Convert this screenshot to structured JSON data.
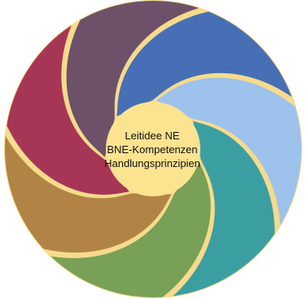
{
  "center": {
    "lines": [
      "Leitidee NE",
      "BNE-Kompetenzen",
      "Handlungsprinzipien"
    ],
    "color": "#FBE390"
  },
  "ring": {
    "background": "#F6DB8C",
    "separator": "#F6DB8C",
    "segments": [
      {
        "color": "#476FB6"
      },
      {
        "color": "#9DC2EB"
      },
      {
        "color": "#3B9FA2"
      },
      {
        "color": "#79A057"
      },
      {
        "color": "#B18445"
      },
      {
        "color": "#A73656"
      },
      {
        "color": "#6D5169"
      }
    ]
  }
}
